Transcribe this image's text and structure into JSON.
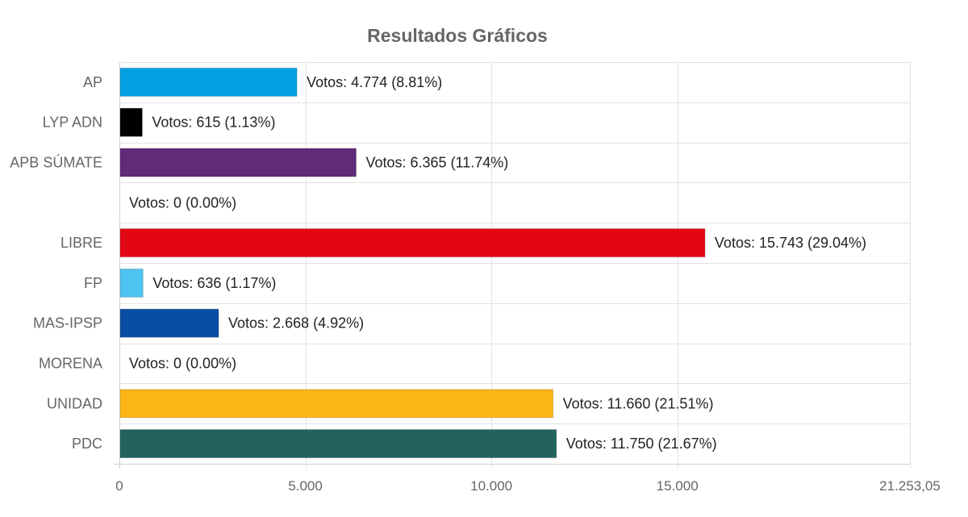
{
  "chart_data": {
    "type": "bar",
    "orientation": "horizontal",
    "title": "Resultados Gráficos",
    "xlabel": "",
    "ylabel": "",
    "categories": [
      "AP",
      "LYP ADN",
      "APB SÚMATE",
      "",
      "LIBRE",
      "FP",
      "MAS-IPSP",
      "MORENA",
      "UNIDAD",
      "PDC"
    ],
    "values": [
      4774,
      615,
      6365,
      0,
      15743,
      636,
      2668,
      0,
      11660,
      11750
    ],
    "data_labels": [
      "Votos: 4.774 (8.81%)",
      "Votos: 615 (1.13%)",
      "Votos: 6.365 (11.74%)",
      "Votos: 0 (0.00%)",
      "Votos: 15.743 (29.04%)",
      "Votos: 636 (1.17%)",
      "Votos: 2.668 (4.92%)",
      "Votos: 0 (0.00%)",
      "Votos: 11.660 (21.51%)",
      "Votos: 11.750 (21.67%)"
    ],
    "colors": [
      "#00a0e3",
      "#000000",
      "#622b7a",
      "#cccccc",
      "#e30613",
      "#4fc3f0",
      "#0a4ea3",
      "#8b1a1a",
      "#fbb516",
      "#23625f"
    ],
    "xlim": [
      0,
      21253.05
    ],
    "xticks": [
      0,
      5000,
      10000,
      15000,
      21253.05
    ],
    "xtick_labels": [
      "0",
      "5.000",
      "10.000",
      "15.000",
      "21.253,05"
    ],
    "grid": true,
    "legend": "none"
  }
}
